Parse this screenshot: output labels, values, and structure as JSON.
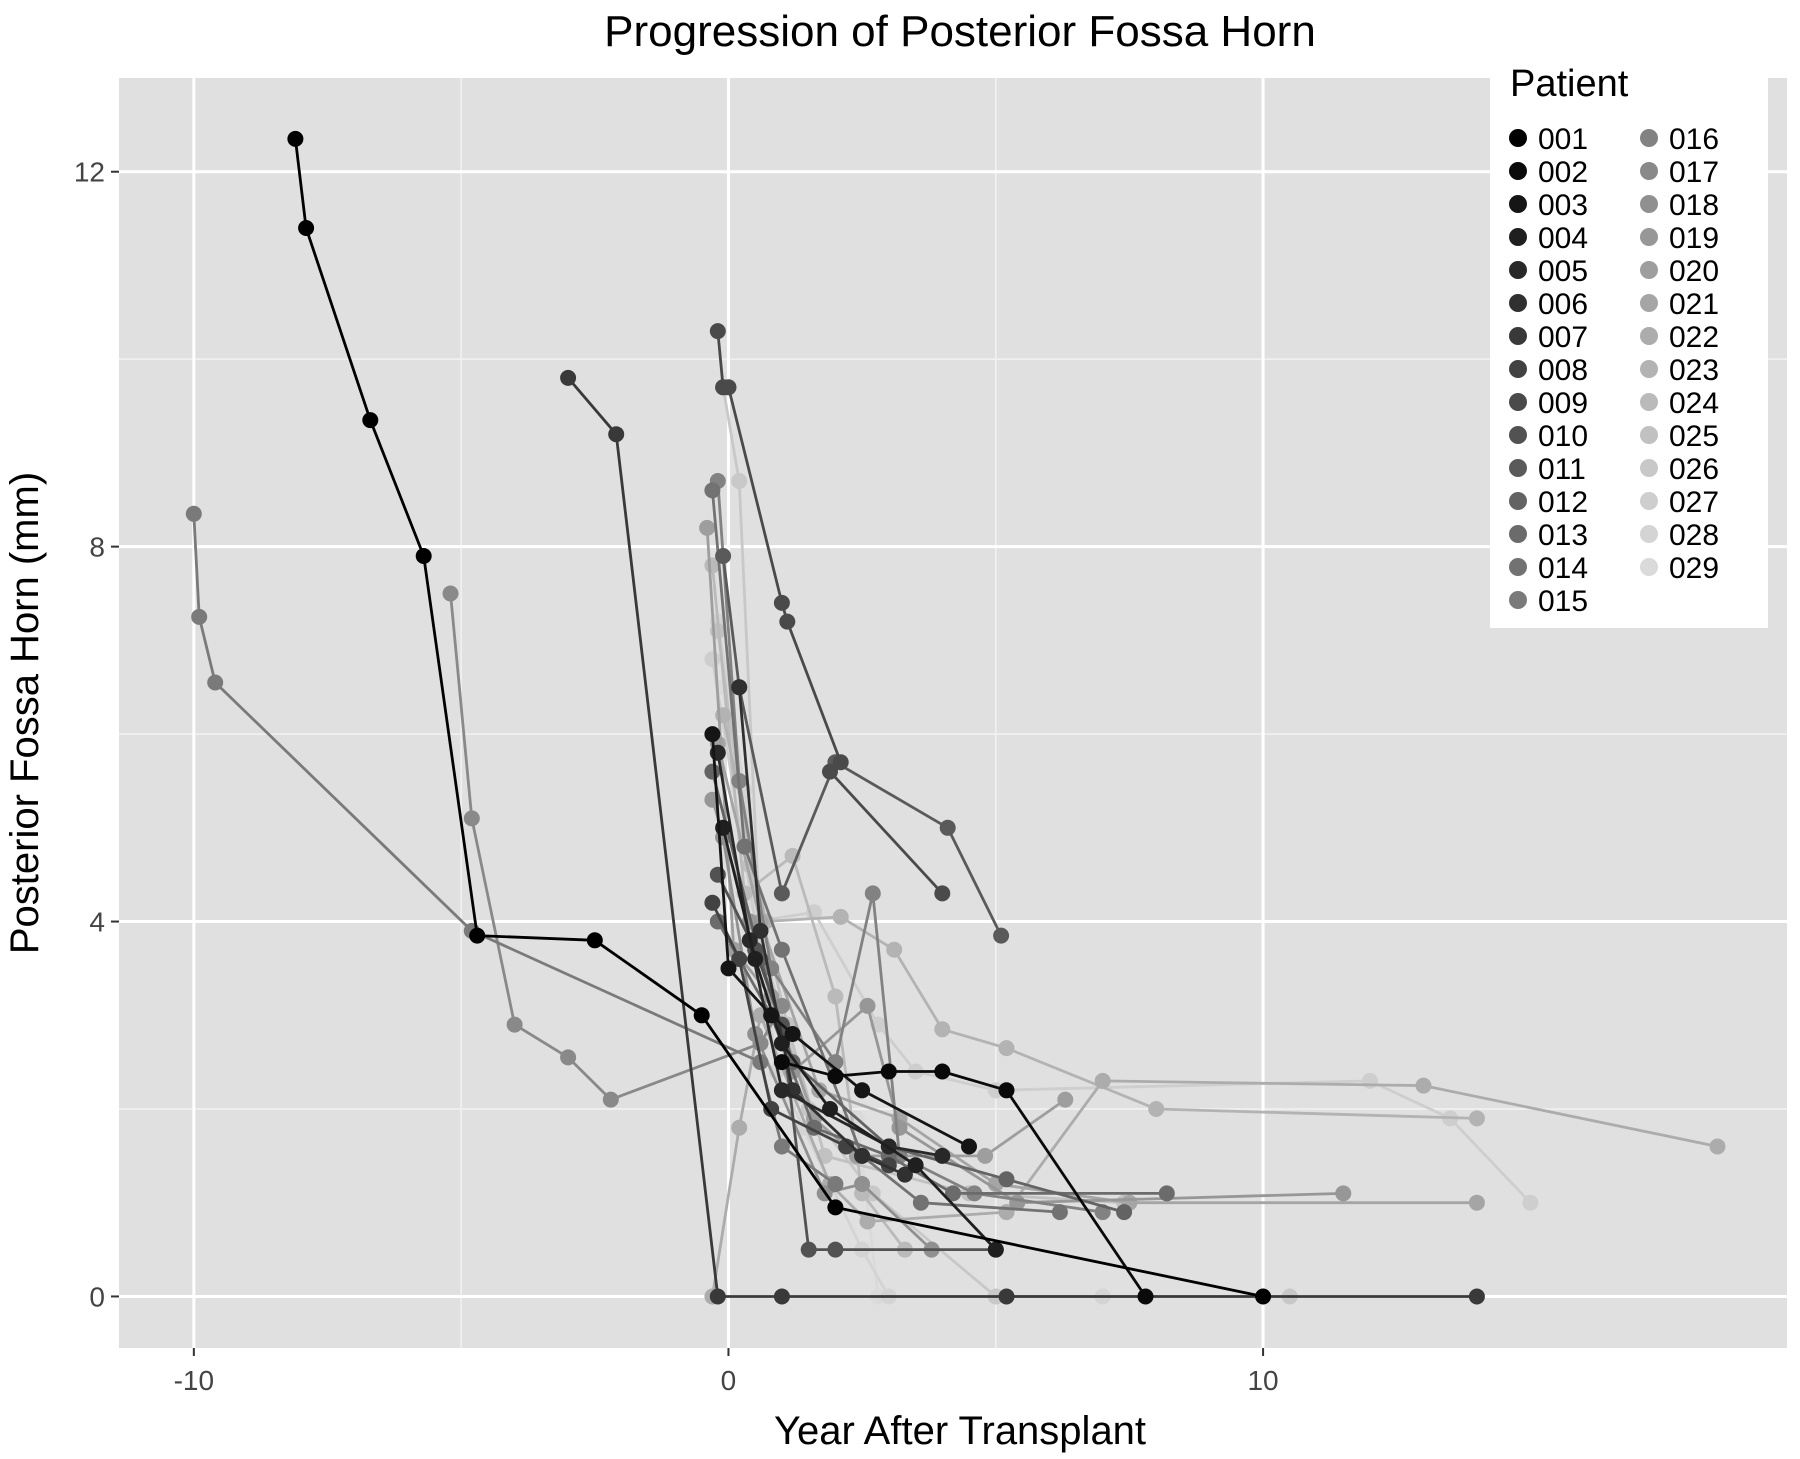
{
  "chart_data": {
    "type": "line",
    "title": "Progression of Posterior Fossa Horn",
    "xlabel": "Year After Transplant",
    "ylabel": "Posterior Fossa Horn (mm)",
    "xlim": [
      -11.4,
      19.8
    ],
    "ylim": [
      -0.55,
      13.0
    ],
    "xticks": [
      -10,
      0,
      10
    ],
    "xtick_labels": [
      "-10",
      "0",
      "10"
    ],
    "yticks": [
      0,
      4,
      8,
      12
    ],
    "ytick_labels": [
      "0",
      "4",
      "8",
      "12"
    ],
    "grid": true,
    "legend_title": "Patient",
    "legend_position": "top-right",
    "series": [
      {
        "name": "001",
        "color": "#000000",
        "points": [
          [
            -8.1,
            12.35
          ],
          [
            -7.9,
            11.4
          ],
          [
            -6.7,
            9.35
          ],
          [
            -5.7,
            7.9
          ],
          [
            -4.7,
            3.85
          ],
          [
            -2.5,
            3.8
          ],
          [
            -0.5,
            3.0
          ],
          [
            2.0,
            0.95
          ],
          [
            10.0,
            0.0
          ]
        ]
      },
      {
        "name": "002",
        "color": "#0a0a0a",
        "points": [
          [
            1.0,
            2.5
          ],
          [
            2.0,
            2.35
          ],
          [
            3.0,
            2.4
          ],
          [
            4.0,
            2.4
          ],
          [
            5.2,
            2.2
          ],
          [
            7.8,
            0.0
          ]
        ]
      },
      {
        "name": "003",
        "color": "#151515",
        "points": [
          [
            -0.3,
            6.0
          ],
          [
            0.0,
            3.5
          ],
          [
            0.8,
            3.0
          ],
          [
            1.2,
            2.8
          ],
          [
            2.5,
            2.2
          ],
          [
            4.5,
            1.6
          ]
        ]
      },
      {
        "name": "004",
        "color": "#1f1f1f",
        "points": [
          [
            -0.1,
            5.0
          ],
          [
            0.5,
            3.6
          ],
          [
            1.0,
            2.7
          ],
          [
            1.9,
            2.0
          ],
          [
            3.5,
            1.4
          ],
          [
            5.0,
            0.5
          ]
        ]
      },
      {
        "name": "005",
        "color": "#282828",
        "points": [
          [
            -0.2,
            5.8
          ],
          [
            0.4,
            3.8
          ],
          [
            1.0,
            2.2
          ],
          [
            3.0,
            1.6
          ],
          [
            4.0,
            1.5
          ]
        ]
      },
      {
        "name": "006",
        "color": "#303030",
        "points": [
          [
            0.2,
            6.5
          ],
          [
            0.6,
            3.9
          ],
          [
            1.2,
            2.2
          ],
          [
            2.5,
            1.5
          ],
          [
            3.3,
            1.3
          ]
        ]
      },
      {
        "name": "007",
        "color": "#393939",
        "points": [
          [
            -3.0,
            9.8
          ],
          [
            -2.1,
            9.2
          ],
          [
            -0.2,
            0.0
          ],
          [
            1.0,
            0.0
          ],
          [
            5.2,
            0.0
          ],
          [
            14.0,
            0.0
          ]
        ]
      },
      {
        "name": "008",
        "color": "#424242",
        "points": [
          [
            -0.3,
            4.2
          ],
          [
            0.2,
            3.6
          ],
          [
            0.8,
            2.0
          ],
          [
            2.2,
            1.6
          ],
          [
            3.0,
            1.4
          ]
        ]
      },
      {
        "name": "009",
        "color": "#4a4a4a",
        "points": [
          [
            -0.2,
            10.3
          ],
          [
            -0.1,
            9.7
          ],
          [
            0.0,
            9.7
          ],
          [
            1.0,
            7.4
          ],
          [
            1.1,
            7.2
          ],
          [
            2.1,
            5.7
          ],
          [
            1.9,
            5.6
          ],
          [
            4.0,
            4.3
          ]
        ]
      },
      {
        "name": "010",
        "color": "#525252",
        "points": [
          [
            -0.2,
            4.5
          ],
          [
            0.5,
            3.7
          ],
          [
            1.0,
            2.9
          ],
          [
            1.5,
            0.5
          ],
          [
            2.0,
            0.5
          ],
          [
            5.0,
            0.5
          ]
        ]
      },
      {
        "name": "011",
        "color": "#5a5a5a",
        "points": [
          [
            -0.1,
            7.9
          ],
          [
            0.2,
            6.5
          ],
          [
            1.0,
            4.3
          ],
          [
            2.0,
            5.7
          ],
          [
            4.1,
            5.0
          ],
          [
            5.1,
            3.85
          ]
        ]
      },
      {
        "name": "012",
        "color": "#636363",
        "points": [
          [
            -0.3,
            5.6
          ],
          [
            0.6,
            3.6
          ],
          [
            1.2,
            2.5
          ],
          [
            3.0,
            1.6
          ],
          [
            5.2,
            1.25
          ],
          [
            7.4,
            0.9
          ]
        ]
      },
      {
        "name": "013",
        "color": "#6b6b6b",
        "points": [
          [
            -0.2,
            4.0
          ],
          [
            0.8,
            3.0
          ],
          [
            1.6,
            1.8
          ],
          [
            3.0,
            1.5
          ],
          [
            4.2,
            1.1
          ],
          [
            8.2,
            1.1
          ]
        ]
      },
      {
        "name": "014",
        "color": "#727272",
        "points": [
          [
            -0.3,
            8.6
          ],
          [
            0.3,
            4.8
          ],
          [
            1.0,
            3.7
          ],
          [
            2.5,
            1.5
          ],
          [
            3.6,
            1.0
          ],
          [
            6.2,
            0.9
          ]
        ]
      },
      {
        "name": "015",
        "color": "#7a7a7a",
        "points": [
          [
            -10.0,
            8.35
          ],
          [
            -9.9,
            7.25
          ],
          [
            -9.6,
            6.55
          ],
          [
            -4.8,
            3.9
          ],
          [
            0.6,
            2.5
          ],
          [
            1.0,
            1.6
          ],
          [
            2.0,
            1.2
          ]
        ]
      },
      {
        "name": "016",
        "color": "#828282",
        "points": [
          [
            -0.2,
            8.7
          ],
          [
            0.2,
            5.5
          ],
          [
            0.8,
            3.5
          ],
          [
            2.0,
            2.5
          ],
          [
            2.7,
            4.3
          ],
          [
            3.2,
            1.5
          ],
          [
            4.6,
            1.1
          ],
          [
            7.0,
            0.9
          ]
        ]
      },
      {
        "name": "017",
        "color": "#898989",
        "points": [
          [
            -5.2,
            7.5
          ],
          [
            -4.8,
            5.1
          ],
          [
            -4.0,
            2.9
          ],
          [
            -3.0,
            2.55
          ],
          [
            -2.2,
            2.1
          ],
          [
            0.6,
            2.7
          ],
          [
            1.0,
            3.1
          ]
        ]
      },
      {
        "name": "018",
        "color": "#909090",
        "points": [
          [
            -0.1,
            4.9
          ],
          [
            0.5,
            2.8
          ],
          [
            1.8,
            1.1
          ],
          [
            2.5,
            1.2
          ],
          [
            3.8,
            0.5
          ]
        ]
      },
      {
        "name": "019",
        "color": "#979797",
        "points": [
          [
            -0.3,
            5.3
          ],
          [
            0.4,
            4.0
          ],
          [
            1.2,
            2.4
          ],
          [
            2.6,
            3.1
          ],
          [
            3.2,
            1.8
          ],
          [
            5.4,
            1.0
          ],
          [
            11.5,
            1.1
          ]
        ]
      },
      {
        "name": "020",
        "color": "#9e9e9e",
        "points": [
          [
            -0.4,
            8.2
          ],
          [
            0.1,
            3.7
          ],
          [
            0.8,
            3.2
          ],
          [
            1.6,
            1.9
          ],
          [
            2.4,
            1.5
          ],
          [
            4.8,
            1.5
          ],
          [
            6.3,
            2.1
          ]
        ]
      },
      {
        "name": "021",
        "color": "#a5a5a5",
        "points": [
          [
            -0.2,
            5.9
          ],
          [
            0.6,
            4.0
          ],
          [
            1.7,
            2.2
          ],
          [
            3.2,
            1.9
          ],
          [
            5.0,
            1.2
          ],
          [
            7.5,
            1.0
          ],
          [
            14.0,
            1.0
          ]
        ]
      },
      {
        "name": "022",
        "color": "#acacac",
        "points": [
          [
            -0.3,
            0.0
          ],
          [
            0.2,
            1.8
          ],
          [
            0.6,
            3.0
          ],
          [
            1.9,
            1.2
          ],
          [
            2.6,
            0.8
          ],
          [
            5.2,
            0.9
          ],
          [
            7.0,
            2.3
          ],
          [
            13.0,
            2.25
          ],
          [
            18.5,
            1.6
          ]
        ]
      },
      {
        "name": "023",
        "color": "#b3b3b3",
        "points": [
          [
            -0.1,
            6.2
          ],
          [
            0.7,
            4.0
          ],
          [
            2.1,
            4.05
          ],
          [
            3.1,
            3.7
          ],
          [
            4.0,
            2.85
          ],
          [
            5.2,
            2.65
          ],
          [
            8.0,
            2.0
          ],
          [
            14.0,
            1.9
          ]
        ]
      },
      {
        "name": "024",
        "color": "#bababa",
        "points": [
          [
            -0.3,
            7.8
          ],
          [
            0.3,
            4.3
          ],
          [
            1.2,
            4.7
          ],
          [
            2.0,
            3.2
          ],
          [
            2.5,
            1.1
          ],
          [
            3.3,
            0.5
          ]
        ]
      },
      {
        "name": "025",
        "color": "#c1c1c1",
        "points": [
          [
            -0.2,
            7.1
          ],
          [
            0.4,
            4.6
          ],
          [
            1.1,
            2.9
          ],
          [
            1.8,
            1.5
          ],
          [
            4.5,
            1.1
          ],
          [
            7.4,
            1.0
          ]
        ]
      },
      {
        "name": "026",
        "color": "#c8c8c8",
        "points": [
          [
            -0.1,
            9.7
          ],
          [
            0.2,
            8.7
          ],
          [
            0.6,
            3.8
          ],
          [
            1.5,
            2.0
          ],
          [
            2.7,
            1.1
          ],
          [
            5.0,
            0.0
          ],
          [
            10.5,
            0.0
          ]
        ]
      },
      {
        "name": "027",
        "color": "#cecece",
        "points": [
          [
            -0.3,
            6.8
          ],
          [
            0.5,
            4.0
          ],
          [
            1.6,
            4.1
          ],
          [
            2.8,
            2.9
          ],
          [
            3.5,
            2.4
          ],
          [
            5.0,
            2.2
          ],
          [
            12.0,
            2.3
          ],
          [
            13.5,
            1.9
          ],
          [
            15.0,
            1.0
          ]
        ]
      },
      {
        "name": "028",
        "color": "#d4d4d4",
        "points": [
          [
            -0.2,
            7.2
          ],
          [
            0.3,
            5.4
          ],
          [
            0.9,
            2.4
          ],
          [
            1.4,
            1.8
          ],
          [
            2.5,
            0.5
          ],
          [
            3.0,
            0.0
          ],
          [
            5.2,
            0.0
          ],
          [
            7.0,
            0.0
          ]
        ]
      },
      {
        "name": "029",
        "color": "#dadada",
        "points": [
          [
            -0.1,
            6.5
          ],
          [
            0.5,
            4.2
          ],
          [
            1.2,
            2.1
          ],
          [
            2.4,
            1.9
          ],
          [
            2.8,
            0.0
          ],
          [
            5.0,
            0.0
          ],
          [
            7.8,
            0.0
          ]
        ]
      }
    ]
  }
}
